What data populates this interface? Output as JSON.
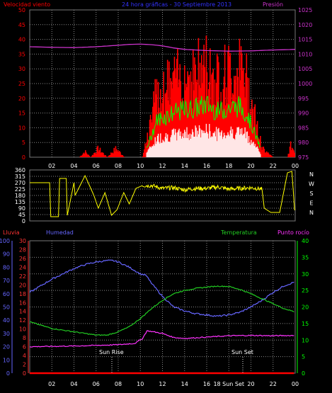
{
  "header": {
    "wind_label": "Velocidad viento",
    "title": "24 hora gráficas - 30 Septiembre 2013",
    "pressure_label": "Presión"
  },
  "bottom_header": {
    "rain_label": "Lluvia",
    "humidity_label": "Humedad",
    "temperature_label": "Temperatura",
    "dewpoint_label": "Punto rocío"
  },
  "colors": {
    "wind": "#ff0000",
    "gust": "#00ff00",
    "avg": "#ffffff",
    "pressure": "#cc33cc",
    "direction": "#ffff00",
    "humidity": "#6666ff",
    "temperature": "#22cc22",
    "dewpoint": "#ff33ff",
    "rain": "#ff0000",
    "axis_temp": "#00ff00",
    "grid": "#888888"
  },
  "x_ticks": [
    "02",
    "04",
    "06",
    "08",
    "10",
    "12",
    "14",
    "16",
    "18",
    "20",
    "22",
    "00"
  ],
  "compass": [
    "N",
    "W",
    "S",
    "E",
    "N"
  ],
  "annotations": {
    "sunrise": "Sun Rise",
    "sunset": "Sun Set",
    "bottom_sunset": "18 Sun Set"
  },
  "chart_data": [
    {
      "type": "area",
      "title": "Velocidad viento",
      "xlabel": "",
      "ylabel": "",
      "xlim": [
        0,
        24
      ],
      "ylim": [
        0,
        50
      ],
      "y_ticks": [
        0,
        5,
        10,
        15,
        20,
        25,
        30,
        35,
        40,
        45,
        50
      ],
      "y2_ticks": [
        975,
        980,
        985,
        990,
        995,
        1000,
        1005,
        1010,
        1015,
        1020,
        1025
      ],
      "y2lim": [
        975,
        1025
      ],
      "series": [
        {
          "name": "Velocidad viento",
          "x": [
            0,
            4.5,
            5.0,
            5.5,
            6.2,
            7.0,
            7.8,
            8.6,
            9.4,
            10.2,
            10.8,
            11.5,
            12.2,
            13,
            14,
            15,
            16,
            17,
            18,
            19,
            19.6,
            20.3,
            21,
            22,
            23.3,
            23.6,
            24
          ],
          "values": [
            0,
            0,
            2,
            0,
            3,
            0,
            3,
            0,
            0,
            0,
            9,
            22,
            24,
            26,
            28,
            29,
            31,
            27,
            29,
            30,
            26,
            15,
            3,
            0,
            0,
            4,
            2
          ]
        },
        {
          "name": "Presión",
          "x": [
            0,
            2,
            4,
            6,
            8,
            9,
            10,
            11,
            12,
            13,
            14,
            16,
            18,
            20,
            22,
            24
          ],
          "values": [
            1012.5,
            1012.3,
            1012.2,
            1012.5,
            1013.0,
            1013.3,
            1013.4,
            1013.2,
            1012.8,
            1012.1,
            1011.6,
            1011.2,
            1011.0,
            1011.1,
            1011.4,
            1011.6
          ]
        }
      ]
    },
    {
      "type": "line",
      "title": "",
      "xlim": [
        0,
        24
      ],
      "ylim": [
        0,
        360
      ],
      "y_ticks": [
        0,
        45,
        90,
        135,
        180,
        225,
        270,
        315,
        360
      ],
      "series": [
        {
          "name": "",
          "x": [
            0,
            1.8,
            1.9,
            2.6,
            2.7,
            3.3,
            3.4,
            4.0,
            4.1,
            5.0,
            5.8,
            6.2,
            6.8,
            7.4,
            7.9,
            8.5,
            9.0,
            9.6,
            10.2,
            11,
            12,
            13,
            14,
            15,
            16,
            17,
            18,
            19,
            20,
            21,
            21.2,
            21.8,
            22.6,
            23.3,
            23.7,
            24
          ],
          "values": [
            270,
            270,
            30,
            30,
            300,
            300,
            40,
            270,
            180,
            320,
            180,
            90,
            200,
            40,
            80,
            200,
            120,
            230,
            250,
            250,
            230,
            235,
            220,
            230,
            230,
            240,
            225,
            230,
            235,
            225,
            90,
            60,
            60,
            340,
            350,
            20
          ]
        }
      ]
    },
    {
      "type": "line",
      "title": "",
      "xlim": [
        0,
        24
      ],
      "y_ticks_humidity": [
        0,
        10,
        20,
        30,
        40,
        50,
        60,
        70,
        80,
        90,
        100
      ],
      "y_ticks_rain": [
        0,
        2,
        4,
        6,
        8,
        10,
        12,
        14,
        16,
        18,
        20,
        22,
        24,
        26,
        28,
        30
      ],
      "y_ticks_temp": [
        0,
        5,
        10,
        15,
        20,
        25,
        30,
        35,
        40
      ],
      "series": [
        {
          "name": "Humedad",
          "axis": "humidity",
          "x": [
            0,
            1,
            2,
            3,
            4,
            5,
            6,
            7,
            7.5,
            8,
            9,
            10,
            10.5,
            11,
            12,
            13,
            14,
            15,
            16,
            17,
            18,
            19,
            20,
            21,
            22,
            23,
            24
          ],
          "values": [
            61,
            66,
            71,
            75,
            79,
            82,
            84,
            85,
            85,
            84,
            80,
            75,
            74,
            68,
            58,
            50,
            47,
            45,
            44,
            43,
            44,
            46,
            50,
            55,
            61,
            66,
            69
          ]
        },
        {
          "name": "Temperatura",
          "axis": "temp",
          "x": [
            0,
            1,
            2,
            3,
            4,
            5,
            6,
            7,
            8,
            9,
            10,
            11,
            12,
            13,
            14,
            15,
            16,
            17,
            18,
            19,
            20,
            21,
            22,
            23,
            24
          ],
          "values": [
            15.5,
            14.5,
            13.5,
            13.0,
            12.5,
            12.0,
            11.5,
            11.5,
            12.5,
            14.0,
            16.5,
            19.5,
            22.0,
            24.0,
            25.0,
            25.6,
            26.0,
            26.3,
            26.2,
            25.3,
            24.0,
            22.5,
            21.0,
            19.5,
            18.5
          ]
        },
        {
          "name": "Punto rocío",
          "axis": "temp",
          "x": [
            0,
            2,
            4,
            6,
            8,
            9.5,
            10.2,
            10.6,
            11,
            12,
            13,
            14,
            16,
            18,
            20,
            22,
            24
          ],
          "values": [
            8.0,
            8.1,
            8.2,
            8.4,
            8.6,
            9.0,
            10.5,
            12.8,
            12.6,
            12.0,
            10.8,
            10.5,
            10.9,
            11.3,
            11.4,
            11.3,
            11.4
          ]
        },
        {
          "name": "Lluvia",
          "axis": "rain",
          "x": [
            0,
            24
          ],
          "values": [
            0,
            0
          ]
        }
      ]
    }
  ]
}
